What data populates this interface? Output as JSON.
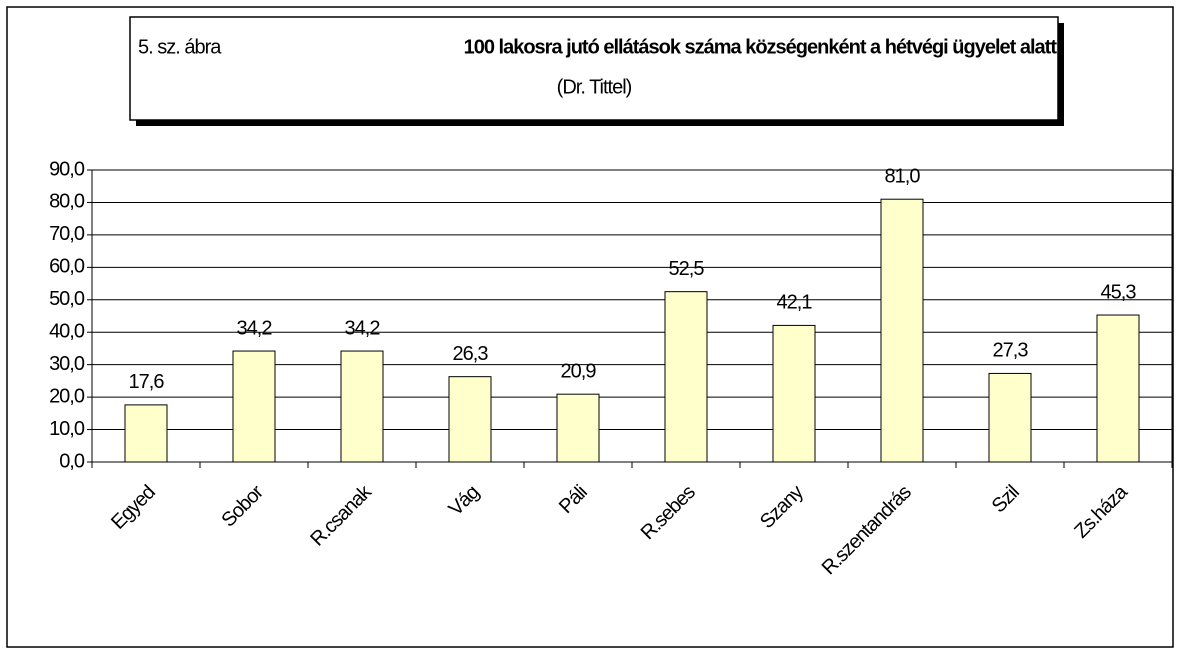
{
  "chart_data": {
    "type": "bar",
    "figure_label": "5. sz. ábra",
    "title": "100 lakosra jutó ellátások száma községenként a hétvégi ügyelet alatt",
    "subtitle": "(Dr. Tittel)",
    "categories": [
      "Egyed",
      "Sobor",
      "R.csanak",
      "Vág",
      "Páli",
      "R.sebes",
      "Szany",
      "R.szentandrás",
      "Szil",
      "Zs.háza"
    ],
    "values": [
      17.6,
      34.2,
      34.2,
      26.3,
      20.9,
      52.5,
      42.1,
      81.0,
      27.3,
      45.3
    ],
    "value_labels": [
      "17,6",
      "34,2",
      "34,2",
      "26,3",
      "20,9",
      "52,5",
      "42,1",
      "81,0",
      "27,3",
      "45,3"
    ],
    "color": "#ffffcc",
    "ylim": [
      0,
      90
    ],
    "yticks": [
      {
        "value": 0,
        "label": "0,0"
      },
      {
        "value": 10,
        "label": "10,0"
      },
      {
        "value": 20,
        "label": "20,0"
      },
      {
        "value": 30,
        "label": "30,0"
      },
      {
        "value": 40,
        "label": "40,0"
      },
      {
        "value": 50,
        "label": "50,0"
      },
      {
        "value": 60,
        "label": "60,0"
      },
      {
        "value": 70,
        "label": "70,0"
      },
      {
        "value": 80,
        "label": "80,0"
      },
      {
        "value": 90,
        "label": "90,0"
      }
    ],
    "grid": true
  }
}
